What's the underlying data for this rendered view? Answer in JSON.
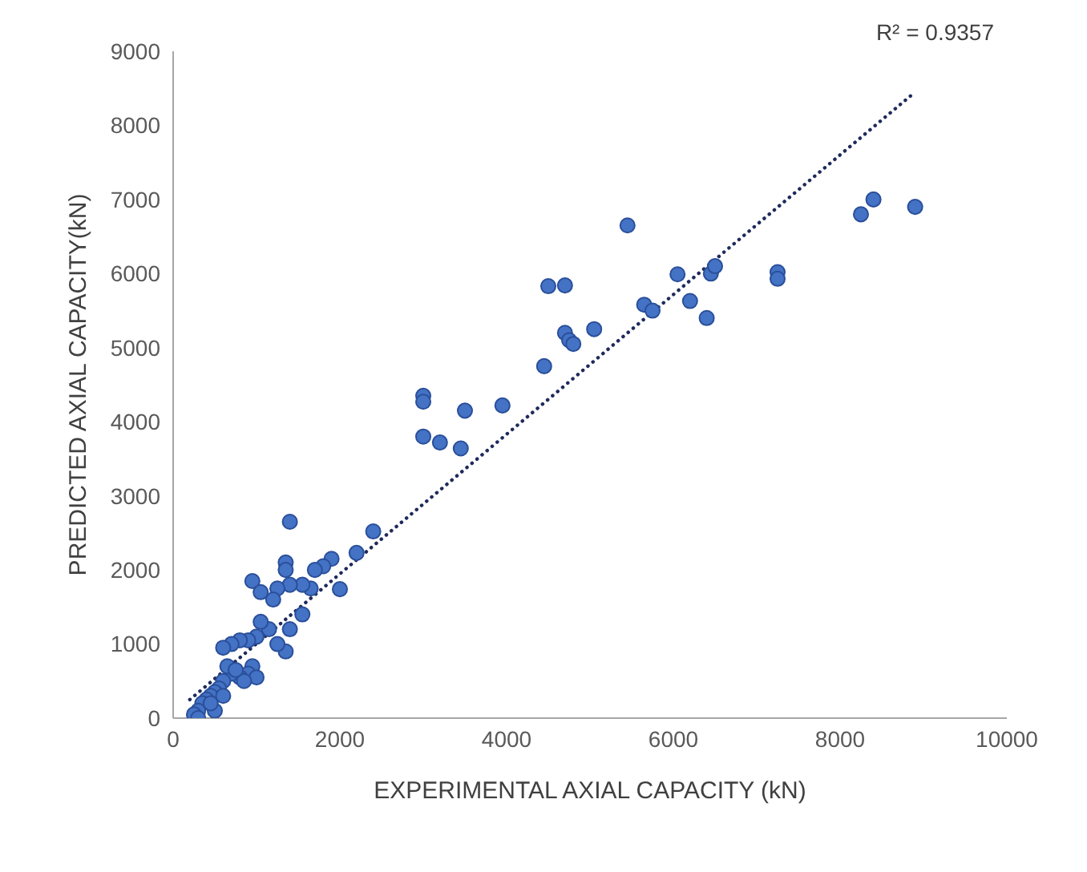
{
  "chart_data": {
    "type": "scatter",
    "xlabel": "EXPERIMENTAL AXIAL CAPACITY (kN)",
    "ylabel": "PREDICTED AXIAL CAPACITY(kN)",
    "xlim": [
      0,
      10000
    ],
    "xticks": [
      0,
      2000,
      4000,
      6000,
      8000,
      10000
    ],
    "ylim": [
      0,
      9000
    ],
    "yticks": [
      0,
      1000,
      2000,
      3000,
      4000,
      5000,
      6000,
      7000,
      8000,
      9000
    ],
    "grid": false,
    "legend": false,
    "marker": "circle",
    "annotations": [
      "R² = 0.9357"
    ],
    "series": [
      {
        "color": "#4472c4",
        "x": [
          3000,
          3000,
          3000,
          3200,
          3450,
          3500,
          3950,
          4450,
          4500,
          4700,
          4700,
          4750,
          4800,
          5050,
          5450,
          5650,
          5750,
          6050,
          6200,
          6400,
          6450,
          6500,
          7250,
          7250,
          8250,
          8400,
          8900,
          2400,
          2200,
          2000,
          1900,
          1800,
          1700,
          1650,
          1550,
          1550,
          1400,
          1350,
          1350,
          1400,
          1250,
          1200,
          950,
          1050,
          1400,
          1350,
          1250,
          1150,
          1050,
          1000,
          900,
          800,
          700,
          600,
          950,
          900,
          800,
          700,
          650,
          600,
          550,
          500,
          450,
          400,
          350,
          300,
          250,
          300,
          500,
          450,
          600,
          1000,
          850,
          750
        ],
        "values": [
          4350,
          4270,
          3800,
          3720,
          3640,
          4150,
          4220,
          4750,
          5830,
          5840,
          5200,
          5100,
          5050,
          5250,
          6650,
          5580,
          5500,
          5990,
          5630,
          5400,
          6000,
          6100,
          6020,
          5930,
          6800,
          7000,
          6900,
          2520,
          2230,
          1740,
          2150,
          2050,
          2000,
          1750,
          1800,
          1400,
          2650,
          2100,
          2000,
          1800,
          1750,
          1600,
          1850,
          1700,
          1200,
          900,
          1000,
          1200,
          1300,
          1100,
          1050,
          1050,
          1000,
          950,
          700,
          600,
          550,
          600,
          700,
          500,
          400,
          350,
          300,
          250,
          200,
          100,
          50,
          0,
          100,
          200,
          300,
          550,
          500,
          650
        ]
      },
      {
        "type": "line",
        "color": "#1f2a5c",
        "line_style": "dotted",
        "marker": "none",
        "x": [
          200,
          8900
        ],
        "values": [
          250,
          8450
        ]
      }
    ]
  }
}
